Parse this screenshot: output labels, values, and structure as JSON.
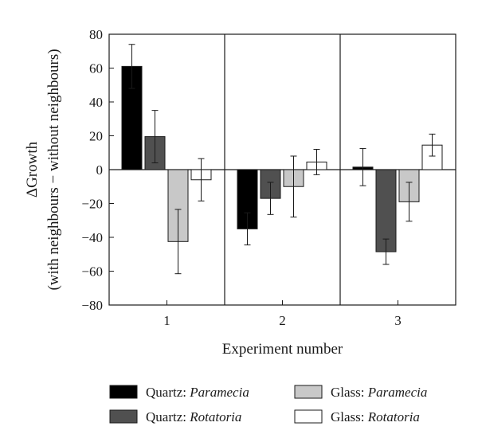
{
  "chart_data": {
    "type": "bar",
    "categories": [
      "1",
      "2",
      "3"
    ],
    "xlabel": "Experiment number",
    "ylabel_line1": "ΔGrowth",
    "ylabel_line2": "(with neighbours − without neighbours)",
    "ylim": [
      -80,
      80
    ],
    "yticks": [
      80,
      60,
      40,
      20,
      0,
      -20,
      -40,
      -60,
      -80
    ],
    "grid": false,
    "legend_position": "bottom",
    "series": [
      {
        "name_prefix": "Quartz: ",
        "name_italic": "Paramecia",
        "color": "#000000",
        "values": [
          61,
          -35,
          1.5
        ],
        "error": [
          13,
          9.5,
          11
        ]
      },
      {
        "name_prefix": "Quartz: ",
        "name_italic": "Rotatoria",
        "color": "#505050",
        "values": [
          19.5,
          -17,
          -48.5
        ],
        "error": [
          15.5,
          9.5,
          7.5
        ]
      },
      {
        "name_prefix": "Glass: ",
        "name_italic": "Paramecia",
        "color": "#c8c8c8",
        "values": [
          -42.5,
          -10,
          -19
        ],
        "error": [
          19,
          18,
          11.5
        ]
      },
      {
        "name_prefix": "Glass: ",
        "name_italic": "Rotatoria",
        "color": "#ffffff",
        "values": [
          -6,
          4.5,
          14.5
        ],
        "error": [
          12.5,
          7.5,
          6.5
        ]
      }
    ]
  }
}
